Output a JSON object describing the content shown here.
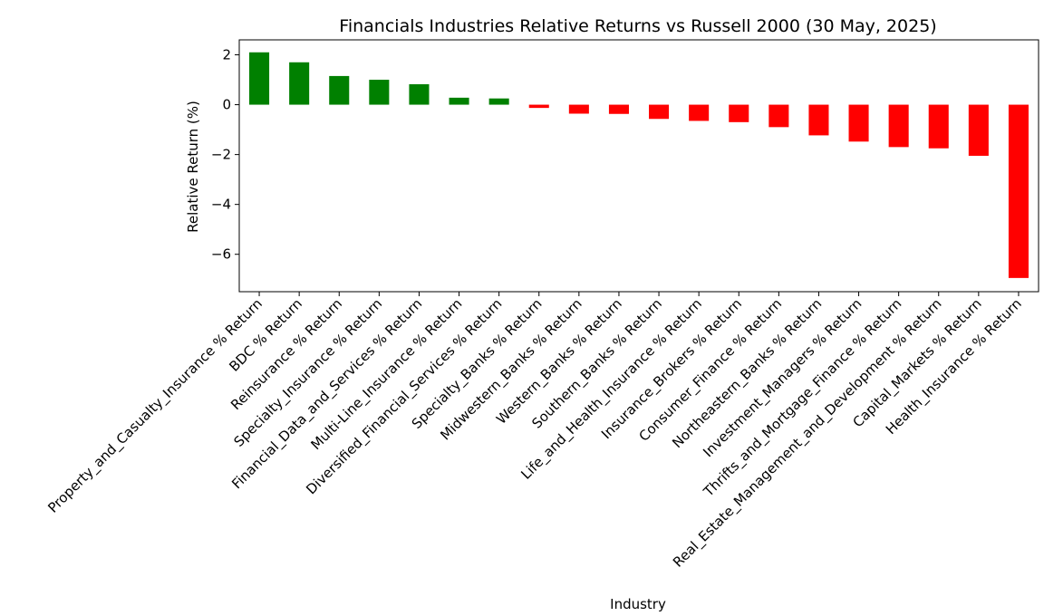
{
  "chart_data": {
    "type": "bar",
    "title": "Financials Industries Relative Returns vs Russell 2000 (30 May, 2025)",
    "xlabel": "Industry",
    "ylabel": "Relative Return (%)",
    "ylim": [
      -7.5,
      2.6
    ],
    "yticks": [
      2,
      0,
      -2,
      -4,
      -6
    ],
    "ytick_labels": [
      "2",
      "0",
      "−2",
      "−4",
      "−6"
    ],
    "positive_color": "#008000",
    "negative_color": "#ff0000",
    "categories": [
      "Property_and_Casualty_Insurance % Return",
      "BDC % Return",
      "Reinsurance % Return",
      "Specialty_Insurance % Return",
      "Financial_Data_and_Services % Return",
      "Multi-Line_Insurance % Return",
      "Diversified_Financial_Services % Return",
      "Specialty_Banks % Return",
      "Midwestern_Banks % Return",
      "Western_Banks % Return",
      "Southern_Banks % Return",
      "Life_and_Health_Insurance % Return",
      "Insurance_Brokers % Return",
      "Consumer_Finance % Return",
      "Northeastern_Banks % Return",
      "Investment_Managers % Return",
      "Thrifts_and_Mortgage_Finance % Return",
      "Real_Estate_Management_and_Development % Return",
      "Capital_Markets % Return",
      "Health_Insurance % Return"
    ],
    "values": [
      2.1,
      1.7,
      1.15,
      1.0,
      0.82,
      0.28,
      0.25,
      -0.13,
      -0.36,
      -0.37,
      -0.57,
      -0.65,
      -0.7,
      -0.9,
      -1.23,
      -1.48,
      -1.7,
      -1.75,
      -2.05,
      -6.95
    ]
  }
}
